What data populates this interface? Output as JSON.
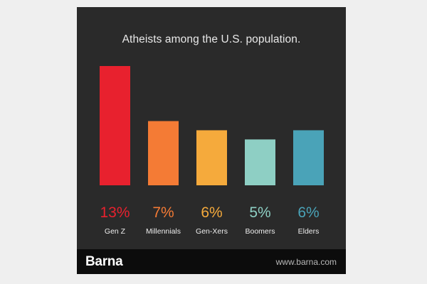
{
  "chart_data": {
    "type": "bar",
    "title": "Atheists among the U.S. population.",
    "categories": [
      "Gen Z",
      "Millennials",
      "Gen-Xers",
      "Boomers",
      "Elders"
    ],
    "values": [
      13,
      7,
      6,
      5,
      6
    ],
    "value_labels": [
      "13%",
      "7%",
      "6%",
      "5%",
      "6%"
    ],
    "colors": [
      "#e8212e",
      "#f47b35",
      "#f5aa3c",
      "#8ecfc4",
      "#4aa3b8"
    ],
    "ylim": [
      0,
      13
    ],
    "xlabel": "",
    "ylabel": "",
    "grid": false,
    "legend": "none"
  },
  "footer": {
    "brand": "Barna",
    "url": "www.barna.com"
  },
  "colors": {
    "card_background": "#2a2a2a",
    "footer_background": "#0c0c0c",
    "page_background": "#efefef"
  }
}
